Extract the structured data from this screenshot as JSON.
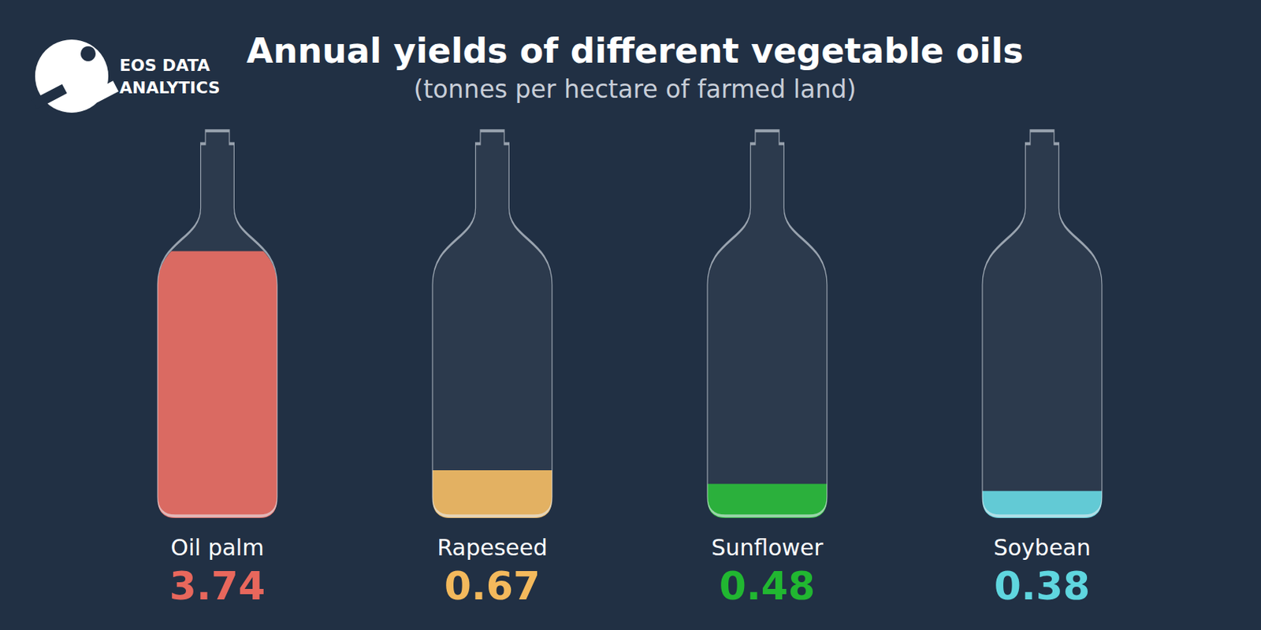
{
  "logo": [
    "EOS DATA",
    "ANALYTICS"
  ],
  "chart_data": {
    "type": "bar",
    "title": "Annual yields of different vegetable oils",
    "subtitle": "(tonnes per hectare of farmed land)",
    "categories": [
      "Oil palm",
      "Rapeseed",
      "Sunflower",
      "Soybean"
    ],
    "values": [
      3.74,
      0.67,
      0.48,
      0.38
    ],
    "colors": [
      "#e8675c",
      "#f3b95c",
      "#21b731",
      "#5fd6df"
    ],
    "ylim": [
      0,
      5.4
    ],
    "grid": false,
    "data_labels": true,
    "tick_labels": "x"
  }
}
